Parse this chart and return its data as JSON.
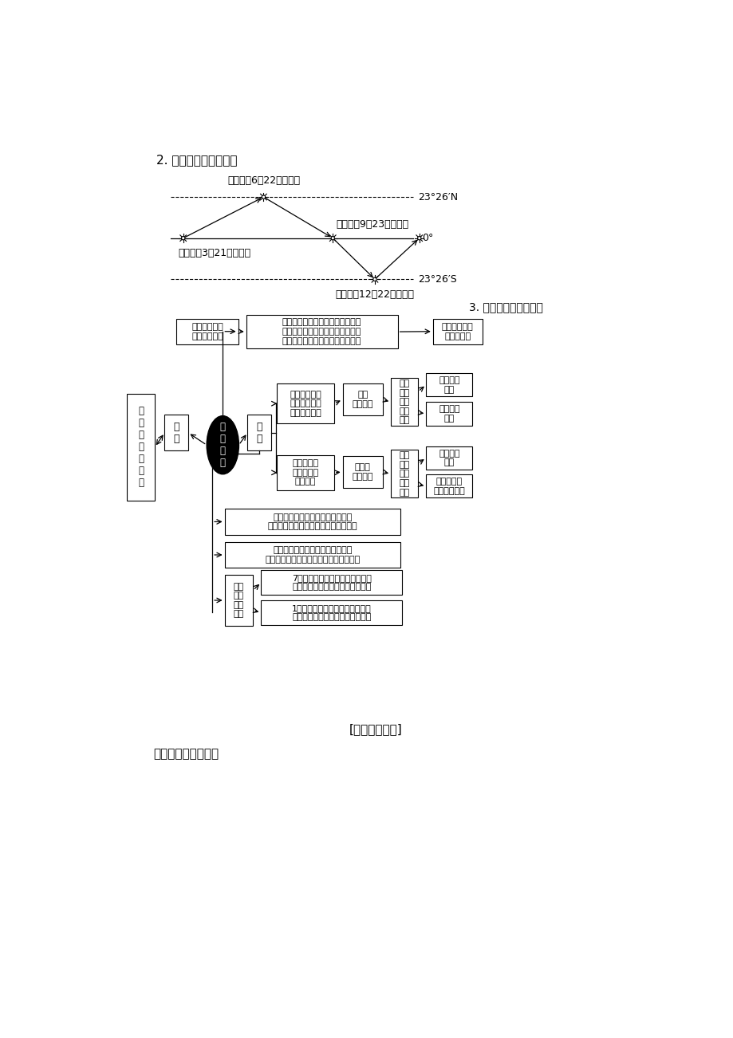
{
  "background_color": "#ffffff",
  "section2_title": "2. 太阳直射点移动规律",
  "section3_title": "3. 黄赤交角变化的影响",
  "exam_title": "[考点规律揭秘]",
  "last_title": "确定季节的判断技巧",
  "solar_points": {
    "summer_label": "夏至日（6月22日前后）",
    "autumn_label": "秋分日（9月23日前后）",
    "spring_label": "春分日（3月21日前后）",
    "winter_label": "冬至日（12月22日前后）",
    "lat_north": "23°26′N",
    "lat_zero": "0°",
    "lat_south": "23°26′S"
  },
  "flowchart": {
    "left_box": "和\n变\n大\n情\n况\n相\n反",
    "small_box": "变\n小",
    "big_box": "变\n大",
    "center_diamond": "黄\n赤\n交\n角",
    "upper_left_box": "地轴与黄道平\n面（公转轨道\n面）交角变小",
    "upper_right_box1": "极圈\n度数变小",
    "upper_right_box2": "极点\n与极\n圈内\n范围\n变大",
    "upper_right_box3": "寒带范围\n扩大",
    "upper_right_box4": "温带范围\n缩小",
    "lower_left_box": "太阳直射点\n北界北推、\n南界南推",
    "lower_right_box1": "回归线\n度数变大",
    "lower_right_box2": "回归\n线之\n间的\n范围\n变大",
    "lower_right_box3": "热带范围\n扩大",
    "lower_right_box4": "太阳直射点\n移动速度加快",
    "top_left_box": "日出时间提前\n日落时间推后",
    "top_right_box": "北半球夏半年，同一日期同一纬度\n各地（已出现极昼范围除外）与原\n来相比昼加长夜缩短，昼夜比变大",
    "mid_right_box": "冬半年，相反\n南半球类推",
    "flow_box1": "赤道低气压带北移或南移幅度变大\n副热带高气压带及其他气压带风带同样",
    "flow_box2": "一年内各地正午太阳高度变化幅度\n（最大值与最小值的差）与原来相比变大",
    "cold_box": "各地\n冷热\n状况\n变化",
    "july_box": "7月，北半球新回归线以北的温带\n和寒带温度升高，南半球温度变低",
    "jan_box": "1月，南半球新回归线以南的温带\n和寒带温度升高，北半球温度变低"
  }
}
